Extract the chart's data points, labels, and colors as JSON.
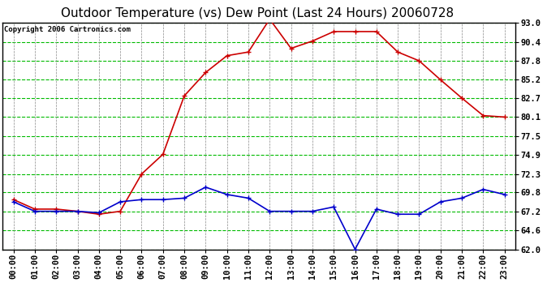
{
  "title": "Outdoor Temperature (vs) Dew Point (Last 24 Hours) 20060728",
  "copyright": "Copyright 2006 Cartronics.com",
  "hours": [
    "00:00",
    "01:00",
    "02:00",
    "03:00",
    "04:00",
    "05:00",
    "06:00",
    "07:00",
    "08:00",
    "09:00",
    "10:00",
    "11:00",
    "12:00",
    "13:00",
    "14:00",
    "15:00",
    "16:00",
    "17:00",
    "18:00",
    "19:00",
    "20:00",
    "21:00",
    "22:00",
    "23:00"
  ],
  "temp": [
    68.8,
    67.5,
    67.5,
    67.2,
    66.8,
    67.2,
    72.3,
    75.0,
    83.0,
    86.2,
    88.5,
    89.0,
    93.5,
    89.5,
    90.5,
    91.8,
    91.8,
    91.8,
    89.0,
    87.8,
    85.2,
    82.7,
    80.3,
    80.1
  ],
  "dew": [
    68.5,
    67.2,
    67.2,
    67.2,
    67.0,
    68.5,
    68.8,
    68.8,
    69.0,
    70.5,
    69.5,
    69.0,
    67.2,
    67.2,
    67.2,
    67.8,
    62.0,
    67.5,
    66.8,
    66.8,
    68.5,
    69.0,
    70.2,
    69.5
  ],
  "temp_color": "#cc0000",
  "dew_color": "#0000cc",
  "bg_color": "#ffffff",
  "plot_bg": "#ffffff",
  "grid_h_color": "#00bb00",
  "grid_v_color": "#888888",
  "ylim": [
    62.0,
    93.0
  ],
  "yticks": [
    62.0,
    64.6,
    67.2,
    69.8,
    72.3,
    74.9,
    77.5,
    80.1,
    82.7,
    85.2,
    87.8,
    90.4,
    93.0
  ],
  "title_fontsize": 11,
  "copyright_fontsize": 6.5,
  "tick_fontsize": 7.5,
  "linewidth": 1.2,
  "marker_size": 5
}
